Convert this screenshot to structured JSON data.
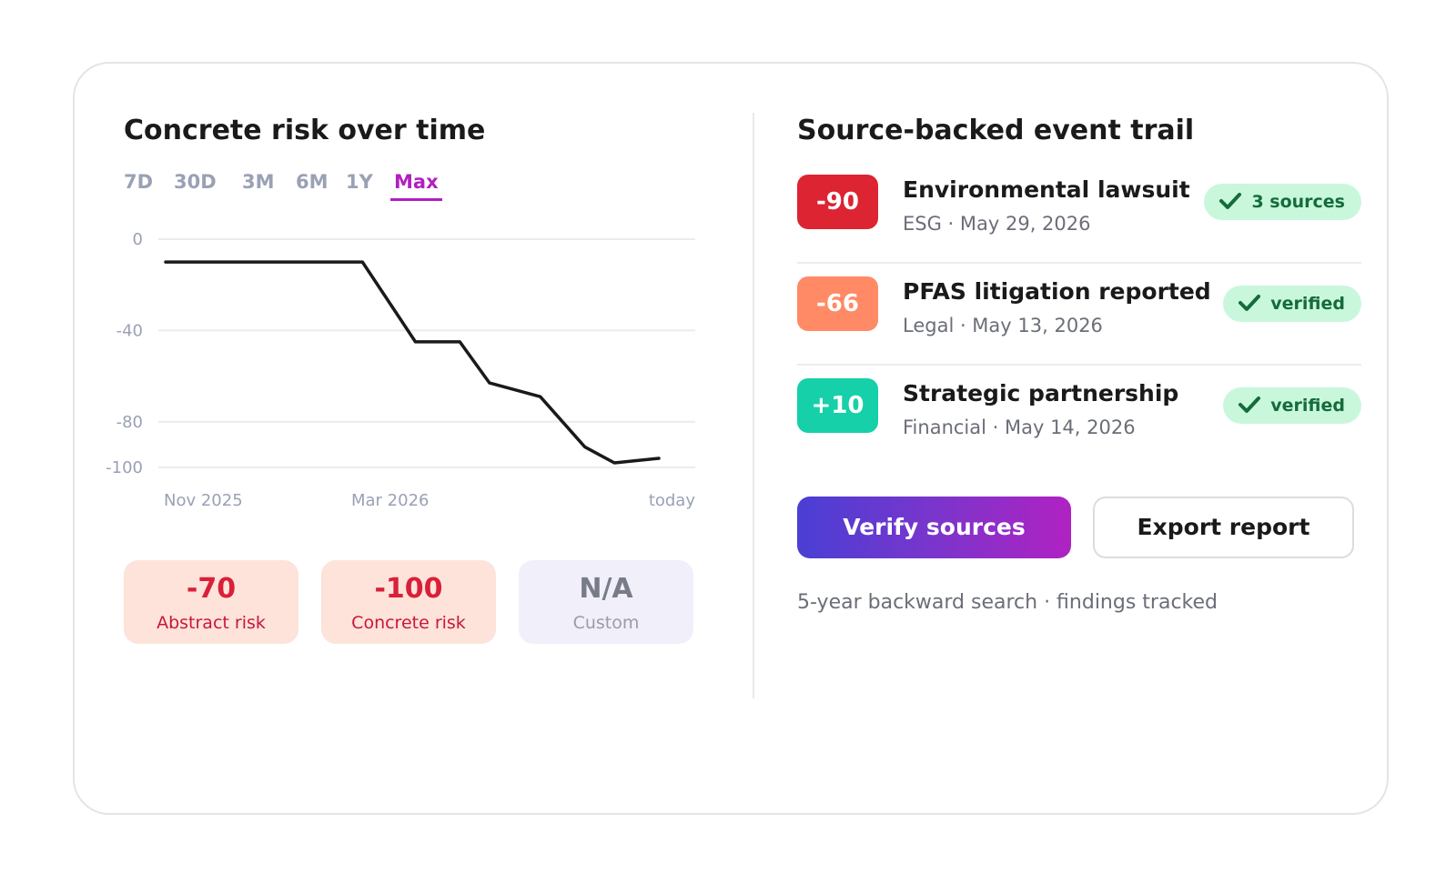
{
  "left": {
    "title": "Concrete risk over time",
    "ranges": [
      "7D",
      "30D",
      "3M",
      "6M",
      "1Y",
      "Max"
    ],
    "active_range": "Max"
  },
  "chart_data": {
    "type": "line",
    "title": "",
    "xlabel": "",
    "ylabel": "",
    "ylim": [
      -100,
      0
    ],
    "yticks": [
      0,
      -40,
      -80,
      -100
    ],
    "x_tick_labels": [
      "Nov 2025",
      "Mar 2026",
      "today"
    ],
    "grid": true,
    "line_color": "#1a1a1a",
    "series": [
      {
        "points": [
          {
            "x": "2025-10-24",
            "y": -10
          },
          {
            "x": "2025-11-14",
            "y": -10
          },
          {
            "x": "2026-01-25",
            "y": -10
          },
          {
            "x": "2026-02-19",
            "y": -45
          },
          {
            "x": "2026-03-12",
            "y": -45
          },
          {
            "x": "2026-03-26",
            "y": -63
          },
          {
            "x": "2026-04-19",
            "y": -69
          },
          {
            "x": "2026-05-10",
            "y": -91
          },
          {
            "x": "2026-05-24",
            "y": -98
          },
          {
            "x": "2026-06-14",
            "y": -96
          }
        ]
      }
    ]
  },
  "stats": [
    {
      "value": "-70",
      "label": "Abstract risk"
    },
    {
      "value": "-100",
      "label": "Concrete risk"
    },
    {
      "value": "N/A",
      "label": "Custom"
    }
  ],
  "right": {
    "title": "Source-backed event trail",
    "events": [
      {
        "score": "-90",
        "score_color": "#dc2433",
        "name": "Environmental lawsuit",
        "meta": "ESG · May 29, 2026",
        "badge": "3 sources"
      },
      {
        "score": "-66",
        "score_color": "#ff8a65",
        "name": "PFAS litigation reported",
        "meta": "Legal · May 13, 2026",
        "badge": "verified"
      },
      {
        "score": "+10",
        "score_color": "#15d0a8",
        "name": "Strategic partnership",
        "meta": "Financial · May 14, 2026",
        "badge": "verified"
      }
    ],
    "badge_icon": "check-icon",
    "verify_label": "Verify sources",
    "export_label": "Export report",
    "footnote": "5-year backward search · findings tracked"
  }
}
